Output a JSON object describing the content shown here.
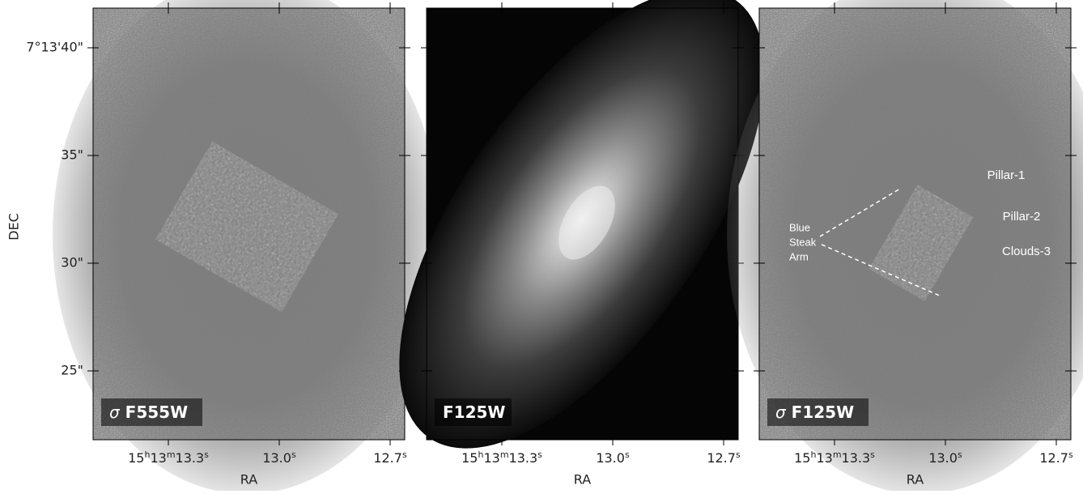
{
  "y_axis": {
    "label": "DEC",
    "ticks": [
      "7°13'40\"",
      "35\"",
      "30\"",
      "25\""
    ]
  },
  "x_axis": {
    "label": "RA",
    "ticks": [
      [
        "15",
        "h",
        "13",
        "m",
        "13.3",
        "s"
      ],
      [
        "13.0",
        "s"
      ],
      [
        "12.7",
        "s"
      ]
    ]
  },
  "panels": [
    {
      "symbol": "σ",
      "label": "F555W"
    },
    {
      "label": "F125W"
    },
    {
      "symbol": "σ",
      "label": "F125W"
    }
  ],
  "annotations": {
    "arm": [
      "Blue",
      "Steak",
      "Arm"
    ],
    "features": [
      "Pillar-1",
      "Pillar-2",
      "Clouds-3"
    ]
  }
}
